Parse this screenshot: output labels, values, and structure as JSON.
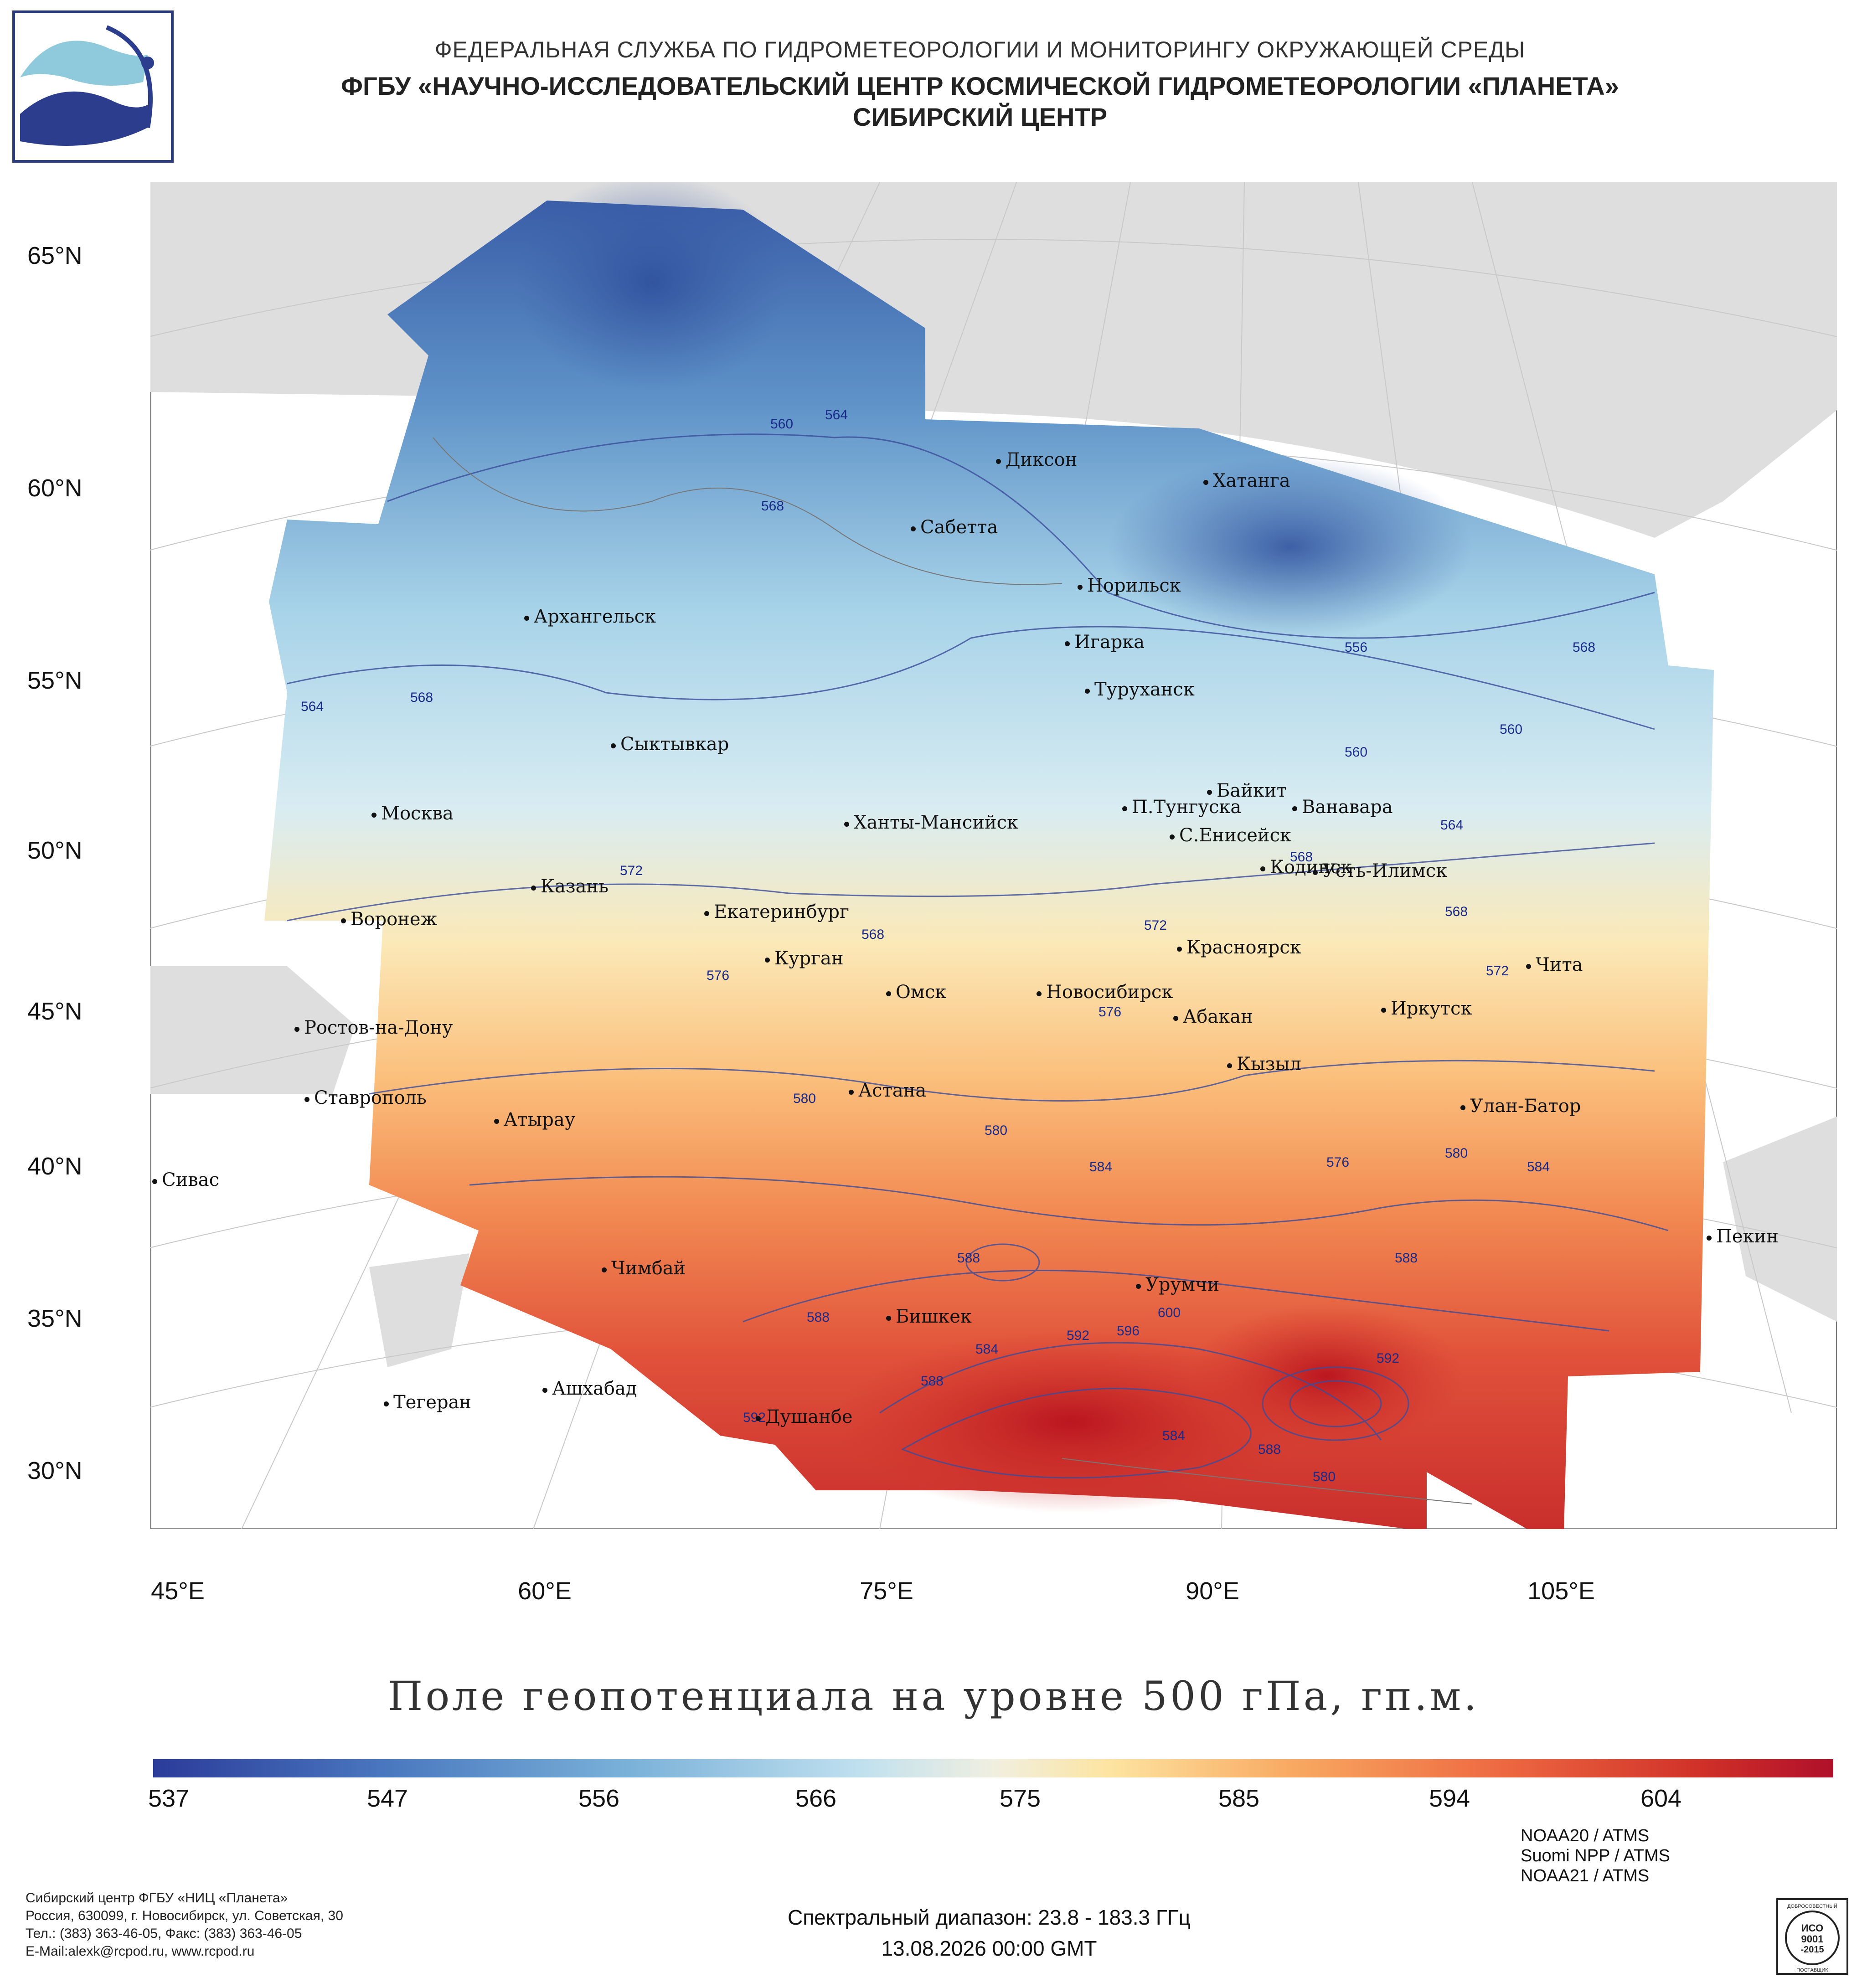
{
  "header": {
    "line1": "ФЕДЕРАЛЬНАЯ СЛУЖБА ПО ГИДРОМЕТЕОРОЛОГИИ И МОНИТОРИНГУ ОКРУЖАЮЩЕЙ СРЕДЫ",
    "line2": "ФГБУ «НАУЧНО-ИССЛЕДОВАТЕЛЬСКИЙ ЦЕНТР КОСМИЧЕСКОЙ ГИДРОМЕТЕОРОЛОГИИ «ПЛАНЕТА»",
    "line3": "СИБИРСКИЙ ЦЕНТР"
  },
  "map": {
    "lat_labels": [
      "65°N",
      "60°N",
      "55°N",
      "50°N",
      "45°N",
      "40°N",
      "35°N",
      "30°N"
    ],
    "lon_labels": [
      "45°E",
      "60°E",
      "75°E",
      "90°E",
      "105°E"
    ],
    "cities": [
      "Диксон",
      "Хатанга",
      "Сабетта",
      "Норильск",
      "Архангельск",
      "Игарка",
      "Туруханск",
      "Сыктывкар",
      "Байкит",
      "Москва",
      "Ханты-Мансийск",
      "П.Тунгуска",
      "Ванавара",
      "С.Енисейск",
      "Кодинск",
      "Усть-Илимск",
      "Казань",
      "Екатеринбург",
      "Воронеж",
      "Красноярск",
      "Курган",
      "Чита",
      "Омск",
      "Новосибирск",
      "Ростов-на-Дону",
      "Иркутск",
      "Абакан",
      "Кызыл",
      "Астана",
      "Ставрополь",
      "Улан-Батор",
      "Атырау",
      "Сивас",
      "Пекин",
      "Чимбай",
      "Урумчи",
      "Бишкек",
      "Ашхабад",
      "Тегеран",
      "Душанбе"
    ],
    "contour_labels": [
      "560",
      "564",
      "568",
      "556",
      "568",
      "564",
      "568",
      "560",
      "560",
      "564",
      "568",
      "572",
      "568",
      "568",
      "572",
      "572",
      "576",
      "576",
      "580",
      "580",
      "584",
      "576",
      "580",
      "584",
      "588",
      "588",
      "588",
      "588",
      "584",
      "592",
      "596",
      "600",
      "592",
      "584",
      "588",
      "580",
      "592"
    ]
  },
  "colorbar": {
    "title": "Поле геопотенциала на уровне 500 гПа, гп.м.",
    "ticks": [
      "537",
      "547",
      "556",
      "566",
      "575",
      "585",
      "594",
      "604"
    ],
    "colors": [
      "#2b3b9a",
      "#4a78bf",
      "#79b0d8",
      "#bfe0ef",
      "#f0efe0",
      "#fde4a0",
      "#f8a860",
      "#ee6a42",
      "#d03128",
      "#b0102a"
    ]
  },
  "footer": {
    "org": "Сибирский центр ФГБУ «НИЦ «Планета»",
    "address": "Россия, 630099, г. Новосибирск, ул. Советская, 30",
    "phone": "Тел.: (383) 363-46-05, Факс: (383) 363-46-05",
    "email": "E-Mail:alexk@rcpod.ru, www.rcpod.ru",
    "spectral": "Спектральный диапазон: 23.8 - 183.3 ГГц",
    "datetime": "13.08.2026 00:00 GMT",
    "satellites": [
      "NOAA20 / ATMS",
      "Suomi NPP / ATMS",
      "NOAA21 / ATMS"
    ],
    "iso_top": "ДОБРОСОВЕСТНЫЙ",
    "iso_mid1": "ИСО",
    "iso_mid2": "9001",
    "iso_mid3": "-2015",
    "iso_bottom": "ПОСТАВЩИК"
  }
}
